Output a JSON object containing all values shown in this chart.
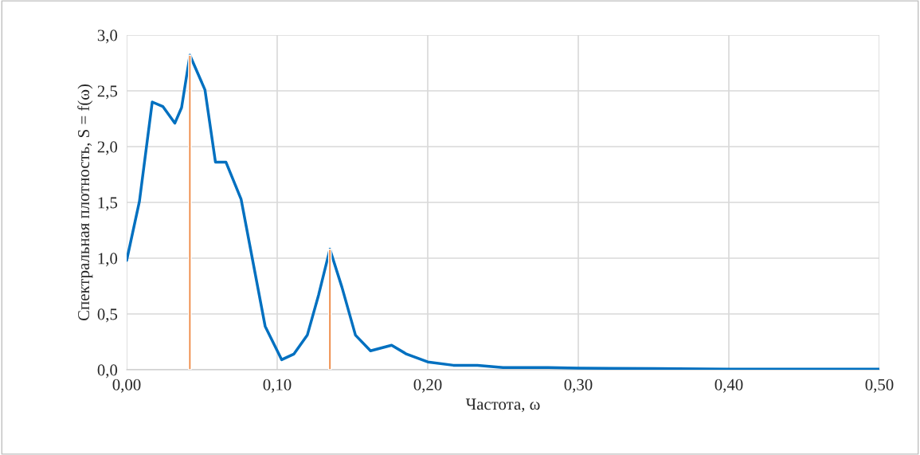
{
  "chart_data": {
    "type": "line",
    "xlabel": "Частота, ω",
    "ylabel": "Спектральная плотность, S = f(ω)",
    "xlim": [
      0,
      0.5
    ],
    "xticks": [
      {
        "value": 0,
        "label": "0,00"
      },
      {
        "value": 0.1,
        "label": "0,10"
      },
      {
        "value": 0.2,
        "label": "0,20"
      },
      {
        "value": 0.3,
        "label": "0,30"
      },
      {
        "value": 0.4,
        "label": "0,40"
      },
      {
        "value": 0.5,
        "label": "0,50"
      }
    ],
    "ylim": [
      0,
      3
    ],
    "yticks": [
      {
        "value": 0,
        "label": "0,0"
      },
      {
        "value": 0.5,
        "label": "0,5"
      },
      {
        "value": 1,
        "label": "1,0"
      },
      {
        "value": 1.5,
        "label": "1,5"
      },
      {
        "value": 2,
        "label": "2,0"
      },
      {
        "value": 2.5,
        "label": "2,5"
      },
      {
        "value": 3,
        "label": "3,0"
      }
    ],
    "grid": true,
    "marker": "none",
    "series": [
      {
        "color": "#0070c0",
        "x": [
          0,
          0.0085,
          0.017,
          0.024,
          0.032,
          0.0365,
          0.042,
          0.052,
          0.059,
          0.066,
          0.076,
          0.084,
          0.092,
          0.103,
          0.111,
          0.12,
          0.1275,
          0.135,
          0.143,
          0.152,
          0.162,
          0.176,
          0.186,
          0.2,
          0.217,
          0.233,
          0.25,
          0.28,
          0.3,
          0.35,
          0.4,
          0.45,
          0.5
        ],
        "values": [
          0.98,
          1.51,
          2.4,
          2.36,
          2.21,
          2.35,
          2.82,
          2.51,
          1.86,
          1.86,
          1.53,
          0.96,
          0.39,
          0.09,
          0.14,
          0.31,
          0.67,
          1.08,
          0.74,
          0.31,
          0.17,
          0.22,
          0.14,
          0.07,
          0.04,
          0.04,
          0.02,
          0.02,
          0.015,
          0.01,
          0.005,
          0.005,
          0.005
        ]
      },
      {
        "type": "bar",
        "color": "#ed7d31",
        "x": [
          0.042,
          0.135
        ],
        "values": [
          2.82,
          1.08
        ]
      }
    ]
  }
}
